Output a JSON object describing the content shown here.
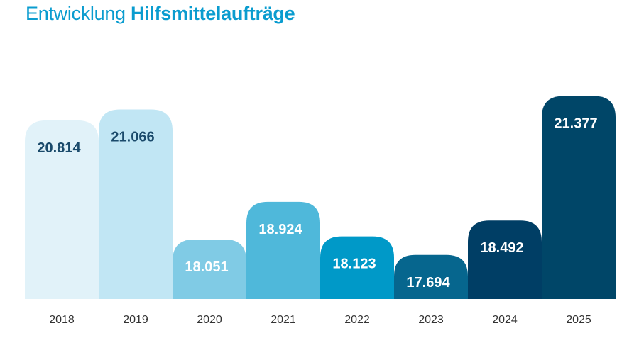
{
  "title": {
    "regular": "Entwicklung",
    "bold": "Hilfsmittelaufträge"
  },
  "chart_data": {
    "type": "bar",
    "categories": [
      "2018",
      "2019",
      "2020",
      "2021",
      "2022",
      "2023",
      "2024",
      "2025"
    ],
    "values": [
      20814,
      21066,
      18051,
      18924,
      18123,
      17694,
      18492,
      21377
    ],
    "value_labels": [
      "20.814",
      "21.066",
      "18.051",
      "18.924",
      "18.123",
      "17.694",
      "18.492",
      "21.377"
    ],
    "bar_colors": [
      "#e1f2f9",
      "#c1e6f4",
      "#80cbe5",
      "#4fb8da",
      "#0099c8",
      "#06668e",
      "#003e65",
      "#004668"
    ],
    "label_colors": [
      "#1a4a6b",
      "#1a4a6b",
      "#ffffff",
      "#ffffff",
      "#ffffff",
      "#ffffff",
      "#ffffff",
      "#ffffff"
    ],
    "ylim": [
      0,
      22000
    ],
    "grid": false,
    "legend": "none",
    "xlabel": "",
    "ylabel": ""
  }
}
